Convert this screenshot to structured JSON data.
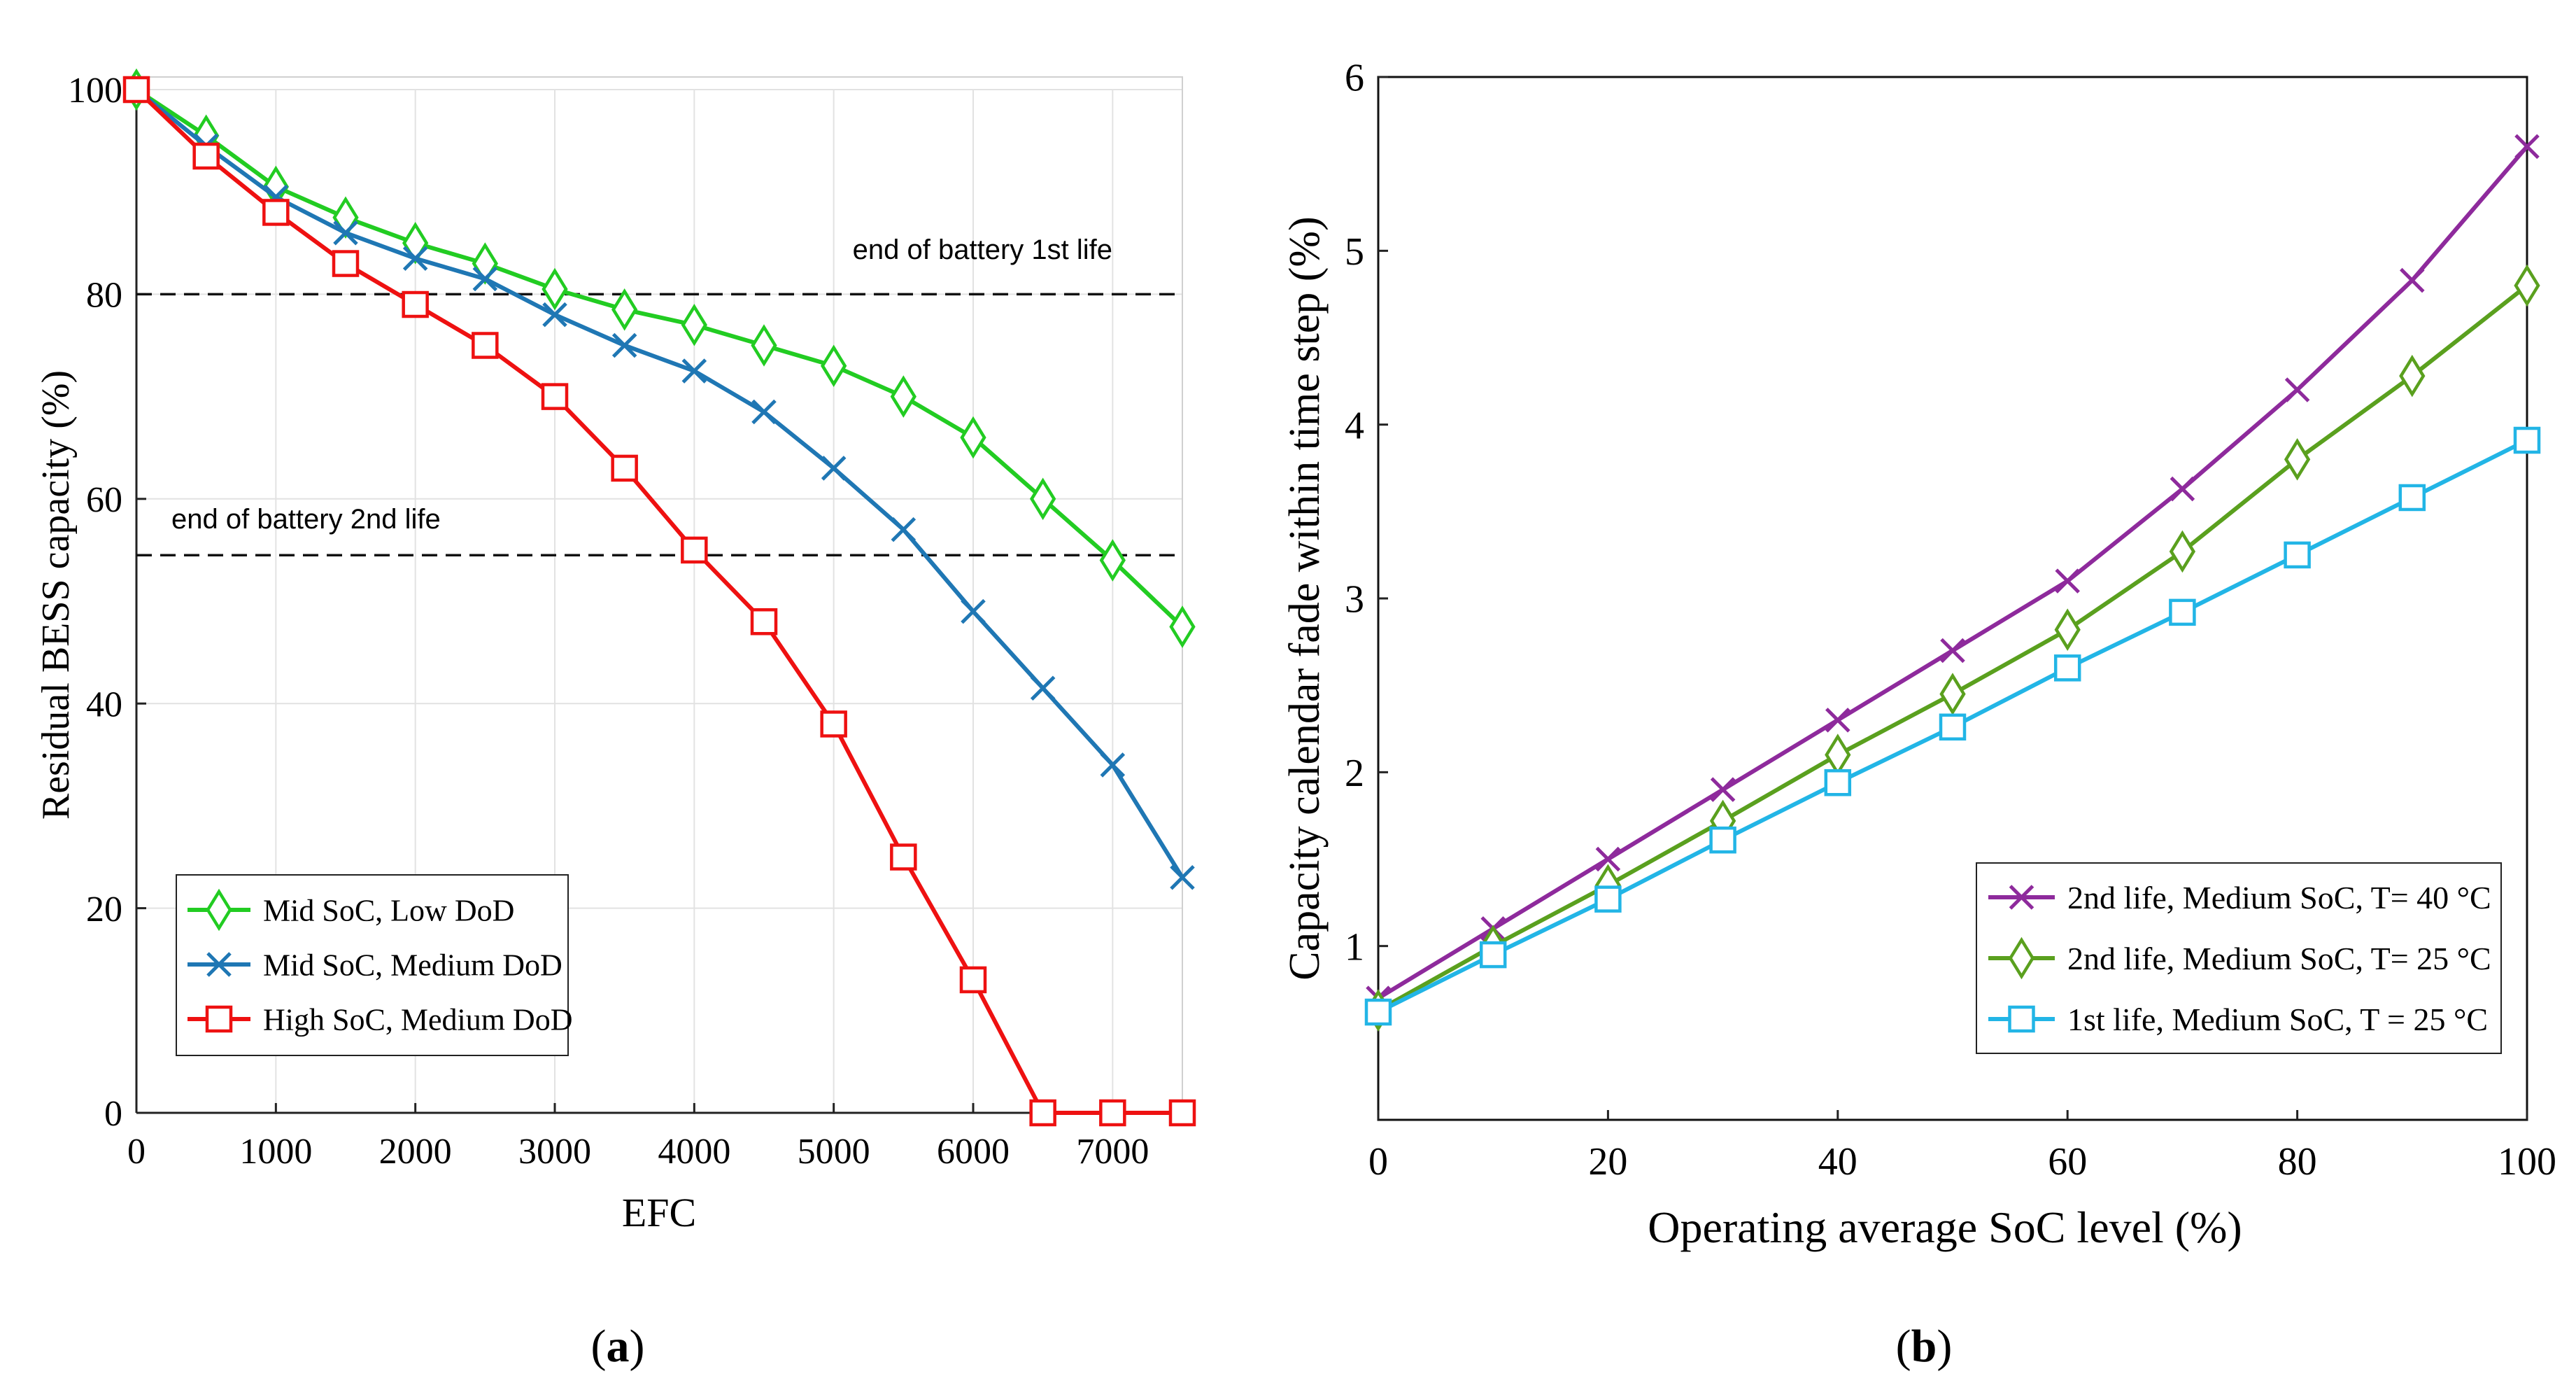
{
  "chart_data": [
    {
      "panel": "a",
      "panel_label": "a",
      "type": "line",
      "xlabel": "EFC",
      "ylabel": "Residual BESS capacity (%)",
      "xlim": [
        0,
        7500
      ],
      "ylim": [
        0,
        100
      ],
      "xticks": [
        0,
        1000,
        2000,
        3000,
        4000,
        5000,
        6000,
        7000
      ],
      "yticks": [
        0,
        20,
        40,
        60,
        80,
        100
      ],
      "x": [
        0,
        500,
        1000,
        1500,
        2000,
        2500,
        3000,
        3500,
        4000,
        4500,
        5000,
        5500,
        6000,
        6500,
        7000,
        7500
      ],
      "series": [
        {
          "name": "Mid SoC, Low DoD",
          "color": "#22cc22",
          "marker": "diamond",
          "values": [
            100,
            95.5,
            90.5,
            87.5,
            85,
            83,
            80.5,
            78.5,
            77,
            75,
            73,
            70,
            66,
            60,
            54,
            47.5
          ]
        },
        {
          "name": "Mid SoC, Medium DoD",
          "color": "#1f77b4",
          "marker": "x",
          "values": [
            100,
            94.5,
            89.5,
            86,
            83.5,
            81.5,
            78,
            75,
            72.5,
            68.5,
            63,
            57,
            49,
            41.5,
            34,
            23
          ]
        },
        {
          "name": "High SoC, Medium DoD",
          "color": "#ee1111",
          "marker": "square",
          "values": [
            100,
            93.5,
            88,
            83,
            79,
            75,
            70,
            63,
            55,
            48,
            38,
            25,
            13,
            0,
            0,
            0
          ]
        }
      ],
      "reference_lines": [
        {
          "value": 80,
          "label": "end of battery 1st life"
        },
        {
          "value": 54.5,
          "label": "end of battery 2nd life"
        }
      ],
      "legend_position": "bottom-left"
    },
    {
      "panel": "b",
      "panel_label": "b",
      "type": "line",
      "xlabel": "Operating average SoC level (%)",
      "ylabel": "Capacity calendar fade within time step (%)",
      "xlim": [
        0,
        100
      ],
      "ylim": [
        0,
        6
      ],
      "xticks": [
        0,
        20,
        40,
        60,
        80,
        100
      ],
      "yticks": [
        1,
        2,
        3,
        4,
        5,
        6
      ],
      "x": [
        0,
        10,
        20,
        30,
        40,
        50,
        60,
        70,
        80,
        90,
        100
      ],
      "series": [
        {
          "name": "2nd life, Medium SoC, T= 40 °C",
          "color": "#8e2a9c",
          "marker": "x",
          "values": [
            0.7,
            1.1,
            1.5,
            1.9,
            2.3,
            2.7,
            3.1,
            3.63,
            4.2,
            4.83,
            5.6
          ]
        },
        {
          "name": "2nd life, Medium SoC, T= 25 °C",
          "color": "#5aa01e",
          "marker": "diamond",
          "values": [
            0.63,
            1.0,
            1.35,
            1.72,
            2.1,
            2.45,
            2.82,
            3.27,
            3.8,
            4.28,
            4.8
          ]
        },
        {
          "name": "1st life, Medium SoC, T = 25 °C",
          "color": "#22b5e6",
          "marker": "square",
          "values": [
            0.62,
            0.95,
            1.27,
            1.61,
            1.94,
            2.26,
            2.6,
            2.92,
            3.25,
            3.58,
            3.91
          ]
        }
      ],
      "legend_position": "bottom-right"
    }
  ]
}
